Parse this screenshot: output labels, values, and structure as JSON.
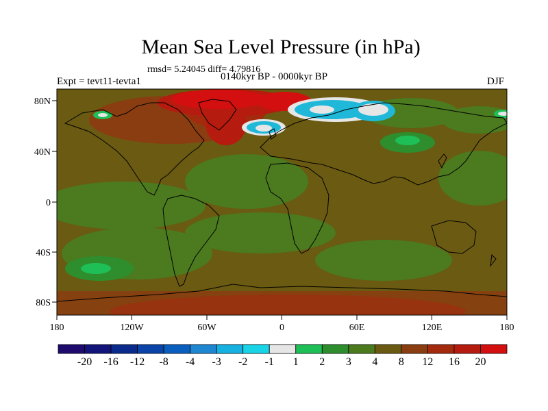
{
  "title": "Mean Sea Level Pressure (in hPa)",
  "stats": "rmsd= 5.24045 diff= 4.79816",
  "experiment": "Expt = tevt11-tevta1",
  "period": "0140kyr BP - 0000kyr BP",
  "season": "DJF",
  "lat_labels": [
    "80N",
    "40N",
    "0",
    "40S",
    "80S"
  ],
  "lon_labels": [
    "180",
    "120W",
    "60W",
    "0",
    "60E",
    "120E",
    "180"
  ],
  "colorbar": {
    "labels": [
      "-20",
      "-16",
      "-12",
      "-8",
      "-4",
      "-3",
      "-2",
      "-1",
      "1",
      "2",
      "3",
      "4",
      "8",
      "12",
      "16",
      "20"
    ],
    "colors": [
      "#1f0b6e",
      "#13147a",
      "#0a2a8c",
      "#0a44a8",
      "#0a5ebd",
      "#1f86d2",
      "#16b1e0",
      "#19d4e6",
      "#e6e6e6",
      "#1fbf57",
      "#2e8e2e",
      "#4b7a1f",
      "#6b5a11",
      "#8a3d10",
      "#a42a0e",
      "#b51b0e",
      "#d40f0f"
    ]
  },
  "colors": {
    "background_field": "#6b5a11",
    "positive_anomaly": "#c41111",
    "negative_anomaly": "#1fb8d8",
    "coast": "#000000"
  }
}
